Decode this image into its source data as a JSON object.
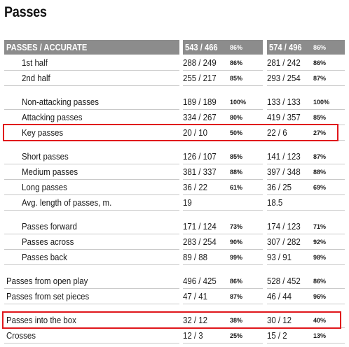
{
  "title": "Passes",
  "header": {
    "label": "PASSES / ACCURATE",
    "team1_value": "543 / 466",
    "team1_pct": "86%",
    "team2_value": "574 / 496",
    "team2_pct": "86%"
  },
  "rows": [
    {
      "label": "1st half",
      "v1": "288 / 249",
      "p1": "86%",
      "v2": "281 / 242",
      "p2": "86%"
    },
    {
      "label": "2nd half",
      "v1": "255 / 217",
      "p1": "85%",
      "v2": "293 / 254",
      "p2": "87%"
    },
    {
      "label": "Non-attacking passes",
      "v1": "189 / 189",
      "p1": "100%",
      "v2": "133 / 133",
      "p2": "100%"
    },
    {
      "label": "Attacking passes",
      "v1": "334 / 267",
      "p1": "80%",
      "v2": "419 / 357",
      "p2": "85%"
    },
    {
      "label": "Key passes",
      "v1": "20 / 10",
      "p1": "50%",
      "v2": "22 / 6",
      "p2": "27%"
    },
    {
      "label": "Short passes",
      "v1": "126 / 107",
      "p1": "85%",
      "v2": "141 / 123",
      "p2": "87%"
    },
    {
      "label": "Medium passes",
      "v1": "381 / 337",
      "p1": "88%",
      "v2": "397 / 348",
      "p2": "88%"
    },
    {
      "label": "Long passes",
      "v1": "36 / 22",
      "p1": "61%",
      "v2": "36 / 25",
      "p2": "69%"
    },
    {
      "label": "Avg. length of passes, m.",
      "v1": "19",
      "p1": "",
      "v2": "18.5",
      "p2": ""
    },
    {
      "label": "Passes forward",
      "v1": "171 / 124",
      "p1": "73%",
      "v2": "174 / 123",
      "p2": "71%"
    },
    {
      "label": "Passes across",
      "v1": "283 / 254",
      "p1": "90%",
      "v2": "307 / 282",
      "p2": "92%"
    },
    {
      "label": "Passes back",
      "v1": "89 / 88",
      "p1": "99%",
      "v2": "93 / 91",
      "p2": "98%"
    },
    {
      "label": "Passes from open play",
      "v1": "496 / 425",
      "p1": "86%",
      "v2": "528 / 452",
      "p2": "86%"
    },
    {
      "label": "Passes from set pieces",
      "v1": "47 / 41",
      "p1": "87%",
      "v2": "46 / 44",
      "p2": "96%"
    },
    {
      "label": "Passes into the box",
      "v1": "32 / 12",
      "p1": "38%",
      "v2": "30 / 12",
      "p2": "40%"
    },
    {
      "label": "Crosses",
      "v1": "12 / 3",
      "p1": "25%",
      "v2": "15 / 2",
      "p2": "13%"
    }
  ],
  "highlight_color": "#e0161b",
  "header_color": "#8c8c8c"
}
